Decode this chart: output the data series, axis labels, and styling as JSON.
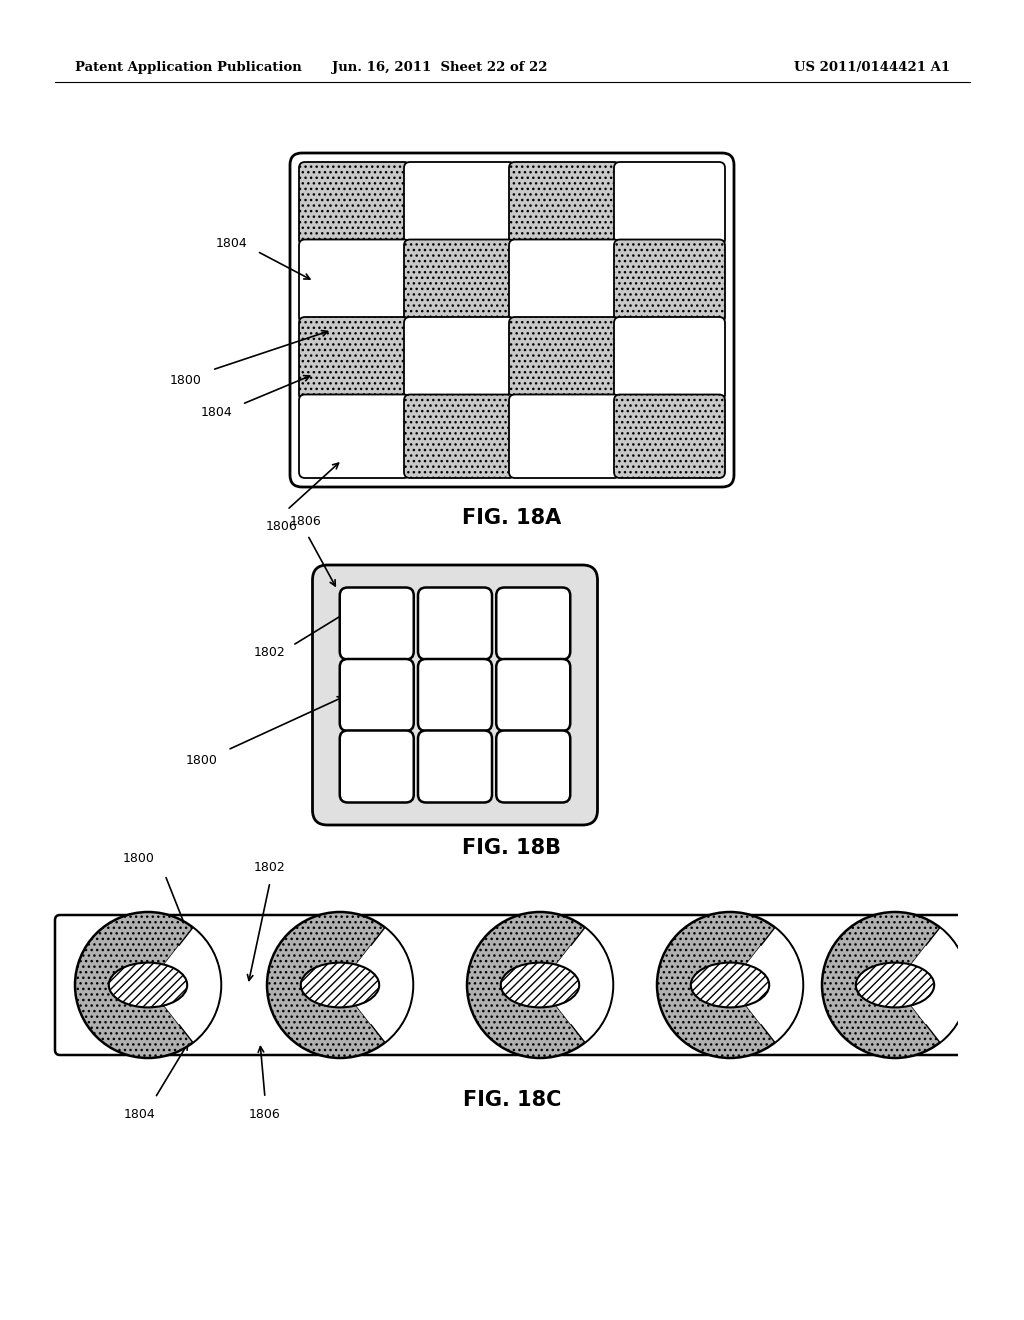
{
  "header_left": "Patent Application Publication",
  "header_mid": "Jun. 16, 2011  Sheet 22 of 22",
  "header_right": "US 2011/0144421 A1",
  "fig18a_label": "FIG. 18A",
  "fig18b_label": "FIG. 18B",
  "fig18c_label": "FIG. 18C",
  "bg_color": "#ffffff",
  "gray_dot_fill": "#c8c8c8",
  "white_fill": "#ffffff",
  "strip_bg": "#ffffff",
  "donut_gray": "#b0b0b0"
}
